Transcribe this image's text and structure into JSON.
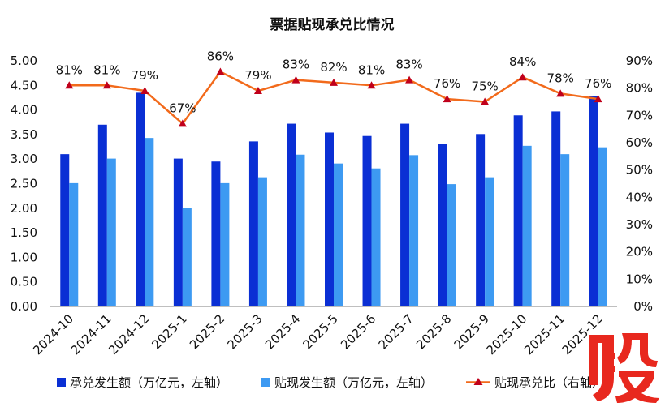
{
  "chart_data": {
    "type": "bar+line",
    "title": "票据贴现承兑比情况",
    "categories": [
      "2024-10",
      "2024-11",
      "2024-12",
      "2025-1",
      "2025-2",
      "2025-3",
      "2025-4",
      "2025-5",
      "2025-6",
      "2025-7",
      "2025-8",
      "2025-9",
      "2025-10",
      "2025-11",
      "2025-12"
    ],
    "series": [
      {
        "name": "承兑发生额（万亿元，左轴）",
        "type": "bar",
        "axis": "left",
        "color": "#0a2fd4",
        "values": [
          3.1,
          3.7,
          4.35,
          3.01,
          2.95,
          3.36,
          3.72,
          3.54,
          3.47,
          3.72,
          3.31,
          3.51,
          3.89,
          3.97,
          4.28
        ]
      },
      {
        "name": "贴现发生额（万亿元，左轴）",
        "type": "bar",
        "axis": "left",
        "color": "#3d9af2",
        "values": [
          2.51,
          3.01,
          3.43,
          2.01,
          2.51,
          2.63,
          3.09,
          2.91,
          2.81,
          3.08,
          2.49,
          2.63,
          3.27,
          3.1,
          3.24
        ]
      },
      {
        "name": "贴现承兑比（右轴）",
        "type": "line",
        "axis": "right",
        "color": "#f26a1b",
        "marker_color": "#c0001b",
        "values": [
          81,
          81,
          79,
          67,
          86,
          79,
          83,
          82,
          81,
          83,
          76,
          75,
          84,
          78,
          76
        ],
        "labels": [
          "81%",
          "81%",
          "79%",
          "67%",
          "86%",
          "79%",
          "83%",
          "82%",
          "81%",
          "83%",
          "76%",
          "75%",
          "84%",
          "78%",
          "76%"
        ]
      }
    ],
    "left_axis": {
      "min": 0,
      "max": 5,
      "step": 0.5,
      "ticks": [
        "0.00",
        "0.50",
        "1.00",
        "1.50",
        "2.00",
        "2.50",
        "3.00",
        "3.50",
        "4.00",
        "4.50",
        "5.00"
      ]
    },
    "right_axis": {
      "min": 0,
      "max": 90,
      "step": 10,
      "ticks": [
        "0%",
        "10%",
        "20%",
        "30%",
        "40%",
        "50%",
        "60%",
        "70%",
        "80%",
        "90%"
      ]
    },
    "legend": {
      "position": "bottom",
      "items": [
        "承兑发生额（万亿元，左轴）",
        "贴现发生额（万亿元，左轴）",
        "贴现承兑比（右轴）"
      ]
    },
    "grid": false
  },
  "watermark": {
    "text": "股",
    "color": "#e8281e"
  }
}
